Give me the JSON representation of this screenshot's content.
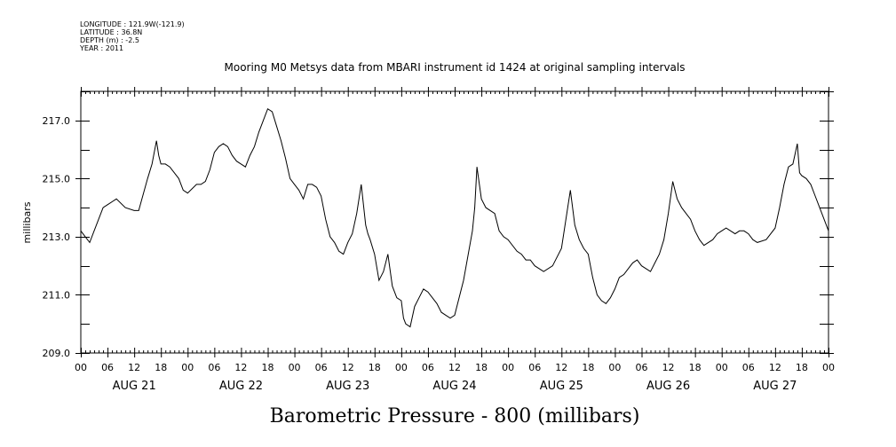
{
  "header": {
    "longitude": "LONGITUDE : 121.9W(-121.9)",
    "latitude": "LATITUDE : 36.8N",
    "depth": "DEPTH (m) : -2.5",
    "year": "YEAR : 2011"
  },
  "caption": "Barometric Pressure - 800 (millibars)",
  "chart_data": {
    "type": "line",
    "title": "Mooring M0 Metsys data from MBARI instrument id 1424 at original sampling intervals",
    "ylabel": "millibars",
    "xlabel": "",
    "ylim": [
      209.0,
      218.0
    ],
    "xlim": [
      0,
      168
    ],
    "x_unit": "hours since AUG 21 00:00, 2011",
    "y_ticks": [
      "209.0",
      "211.0",
      "213.0",
      "215.0",
      "217.0"
    ],
    "y_tick_values": [
      209,
      211,
      213,
      215,
      217
    ],
    "hour_tick_labels": [
      "00",
      "06",
      "12",
      "18",
      "00",
      "06",
      "12",
      "18",
      "00",
      "06",
      "12",
      "18",
      "00",
      "06",
      "12",
      "18",
      "00",
      "06",
      "12",
      "18",
      "00",
      "06",
      "12",
      "18",
      "00",
      "06",
      "12",
      "18",
      "00"
    ],
    "day_labels": [
      "AUG 21",
      "AUG 22",
      "AUG 23",
      "AUG 24",
      "AUG 25",
      "AUG 26",
      "AUG 27"
    ],
    "grid": false,
    "series": [
      {
        "name": "",
        "x": [
          0,
          1,
          2,
          3,
          5,
          6,
          8,
          10,
          12,
          13,
          15,
          16,
          17,
          17.5,
          18,
          19,
          20,
          21,
          22,
          23,
          24,
          26,
          27,
          28,
          29,
          30,
          31,
          32,
          33,
          34,
          35,
          36,
          37,
          38,
          39,
          40,
          41,
          42,
          43,
          44,
          45,
          46,
          47,
          48,
          49,
          50,
          51,
          52,
          53,
          54,
          55,
          56,
          57,
          58,
          59,
          60,
          61,
          62,
          63,
          64,
          64.5,
          65,
          66,
          67,
          68,
          69,
          70,
          71,
          72,
          72.5,
          73,
          74,
          75,
          76,
          77,
          78,
          79,
          80,
          81,
          82,
          83,
          84,
          86,
          88,
          88.5,
          89,
          90,
          91,
          92,
          93,
          94,
          95,
          96,
          98,
          99,
          100,
          101,
          102,
          104,
          106,
          108,
          110,
          111,
          112,
          113,
          114,
          115,
          116,
          117,
          118,
          119,
          120,
          121,
          122,
          123,
          124,
          125,
          126,
          127,
          128,
          129,
          130,
          131,
          132,
          133,
          134,
          135,
          136,
          137,
          138,
          139,
          140,
          141,
          142,
          143,
          144,
          145,
          146,
          147,
          148,
          149,
          150,
          151,
          152,
          154,
          156,
          157,
          158,
          159,
          160,
          161,
          161.5,
          162,
          163,
          164,
          165,
          166,
          167,
          168
        ],
        "values": [
          213.2,
          213.0,
          212.8,
          213.2,
          214.0,
          214.1,
          214.3,
          214.0,
          213.9,
          213.9,
          215.0,
          215.5,
          216.3,
          215.8,
          215.5,
          215.5,
          215.4,
          215.2,
          215.0,
          214.6,
          214.5,
          214.8,
          214.8,
          214.9,
          215.3,
          215.9,
          216.1,
          216.2,
          216.1,
          215.8,
          215.6,
          215.5,
          215.4,
          215.8,
          216.1,
          216.6,
          217.0,
          217.4,
          217.3,
          216.8,
          216.3,
          215.7,
          215.0,
          214.8,
          214.6,
          214.3,
          214.8,
          214.8,
          214.7,
          214.4,
          213.6,
          213.0,
          212.8,
          212.5,
          212.4,
          212.8,
          213.1,
          213.8,
          214.8,
          213.4,
          213.1,
          212.9,
          212.4,
          211.5,
          211.8,
          212.4,
          211.3,
          210.9,
          210.8,
          210.2,
          210.0,
          209.9,
          210.6,
          210.9,
          211.2,
          211.1,
          210.9,
          210.7,
          210.4,
          210.3,
          210.2,
          210.3,
          211.5,
          213.2,
          214.0,
          215.4,
          214.3,
          214.0,
          213.9,
          213.8,
          213.2,
          213.0,
          212.9,
          212.5,
          212.4,
          212.2,
          212.2,
          212.0,
          211.8,
          212.0,
          212.6,
          214.6,
          213.4,
          212.9,
          212.6,
          212.4,
          211.6,
          211.0,
          210.8,
          210.7,
          210.9,
          211.2,
          211.6,
          211.7,
          211.9,
          212.1,
          212.2,
          212.0,
          211.9,
          211.8,
          212.1,
          212.4,
          212.9,
          213.8,
          214.9,
          214.3,
          214.0,
          213.8,
          213.6,
          213.2,
          212.9,
          212.7,
          212.8,
          212.9,
          213.1,
          213.2,
          213.3,
          213.2,
          213.1,
          213.2,
          213.2,
          213.1,
          212.9,
          212.8,
          212.9,
          213.3,
          214.0,
          214.8,
          215.4,
          215.5,
          216.2,
          215.2,
          215.1,
          215.0,
          214.8,
          214.4,
          214.0,
          213.6,
          213.2
        ]
      }
    ]
  }
}
